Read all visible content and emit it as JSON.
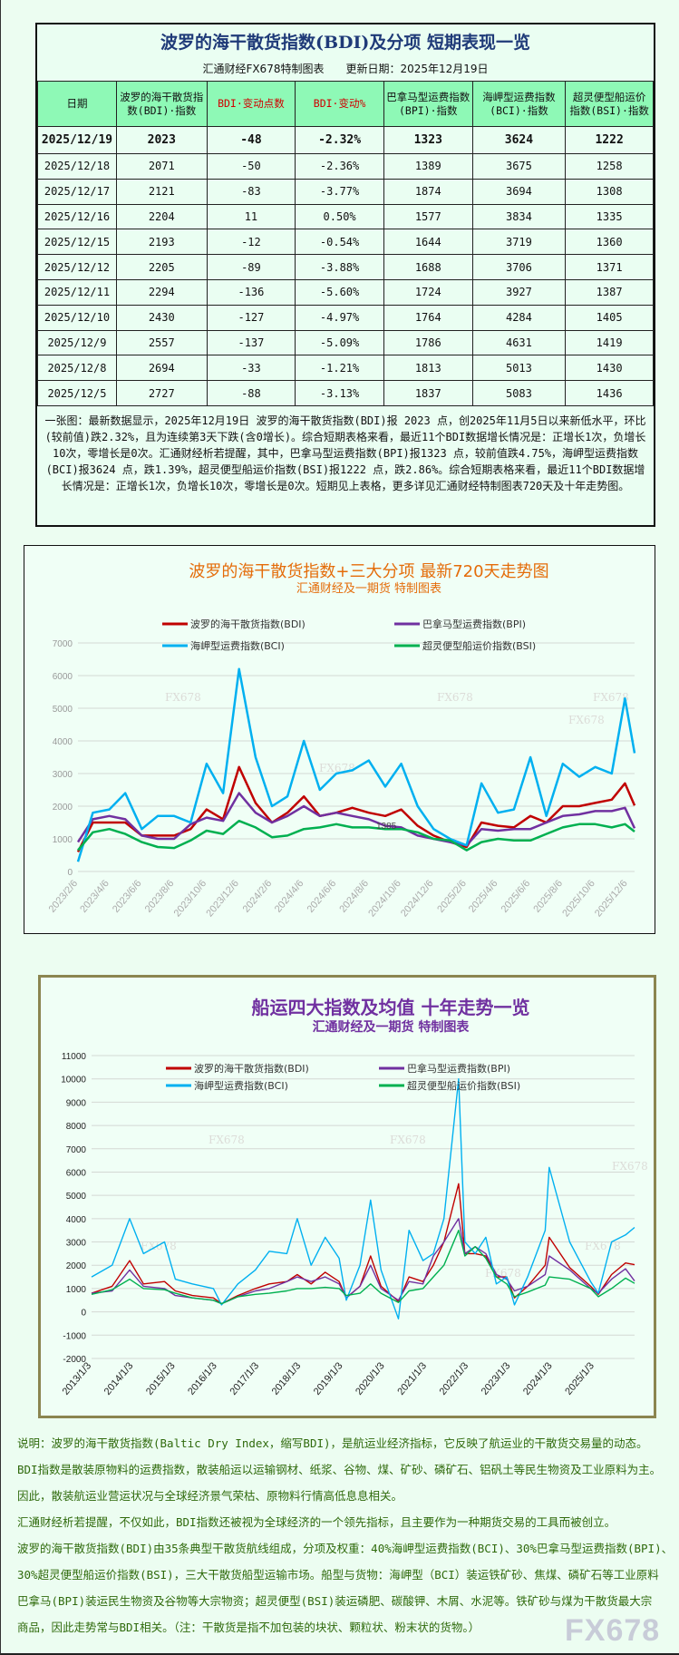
{
  "table_panel": {
    "title": "波罗的海干散货指数(BDI)及分项 短期表现一览",
    "source": "汇通财经FX678特制图表",
    "update_date": "更新日期：2025年12月19日",
    "headers": [
      "日期",
      "波罗的海干散货指数(BDI)·指数",
      "BDI·变动点数",
      "BDI·变动%",
      "巴拿马型运费指数(BPI)·指数",
      "海岬型运费指数(BCI)·指数",
      "超灵便型船运价指数(BSI)·指数"
    ],
    "rows": [
      [
        "2025/12/19",
        "2023",
        "-48",
        "-2.32%",
        "1323",
        "3624",
        "1222"
      ],
      [
        "2025/12/18",
        "2071",
        "-50",
        "-2.36%",
        "1389",
        "3675",
        "1258"
      ],
      [
        "2025/12/17",
        "2121",
        "-83",
        "-3.77%",
        "1874",
        "3694",
        "1308"
      ],
      [
        "2025/12/16",
        "2204",
        "11",
        "0.50%",
        "1577",
        "3834",
        "1335"
      ],
      [
        "2025/12/15",
        "2193",
        "-12",
        "-0.54%",
        "1644",
        "3719",
        "1360"
      ],
      [
        "2025/12/12",
        "2205",
        "-89",
        "-3.88%",
        "1688",
        "3706",
        "1371"
      ],
      [
        "2025/12/11",
        "2294",
        "-136",
        "-5.60%",
        "1724",
        "3927",
        "1387"
      ],
      [
        "2025/12/10",
        "2430",
        "-127",
        "-4.97%",
        "1764",
        "4284",
        "1405"
      ],
      [
        "2025/12/9",
        "2557",
        "-137",
        "-5.09%",
        "1786",
        "4631",
        "1419"
      ],
      [
        "2025/12/8",
        "2694",
        "-33",
        "-1.21%",
        "1813",
        "5013",
        "1430"
      ],
      [
        "2025/12/5",
        "2727",
        "-88",
        "-3.13%",
        "1837",
        "5083",
        "1436"
      ]
    ],
    "summary": "一张图：最新数据显示，2025年12月19日 波罗的海干散货指数(BDI)报 2023 点，创2025年11月5日以来新低水平，环比(较前值)跌2.32%，且为连续第3天下跌(含0增长)。综合短期表格来看，最近11个BDI数据增长情况是：正增长1次，负增长10次，零增长是0次。汇通财经析若提醒，其中，巴拿马型运费指数(BPI)报1323 点，较前值跌4.75%，海岬型运费指数(BCI)报3624 点，跌1.39%，超灵便型船运价指数(BSI)报1222 点，跌2.86%。综合短期表格来看，最近11个BDI数据增长情况是：正增长1次，负增长10次，零增长是0次。短期见上表格，更多详见汇通财经特制图表720天及十年走势图。"
  },
  "chart_data": [
    {
      "type": "line",
      "title": "波罗的海干散货指数+三大分项  最新720天走势图",
      "subtitle": "汇通财经及一期货  特制图表",
      "title_color": "#e46c0a",
      "ylim": [
        0,
        7000
      ],
      "yticks": [
        0,
        1000,
        2000,
        3000,
        4000,
        5000,
        6000,
        7000
      ],
      "xlim": [
        "2023-02-06",
        "2025-12-19"
      ],
      "x_ticks": [
        "2023/2/6",
        "2023/4/6",
        "2023/6/6",
        "2023/8/6",
        "2023/10/6",
        "2023/12/6",
        "2024/2/6",
        "2024/4/6",
        "2024/6/6",
        "2024/8/6",
        "2024/10/6",
        "2024/12/6",
        "2025/2/6",
        "2025/4/6",
        "2025/6/6",
        "2025/8/6",
        "2025/10/6",
        "2025/12/6"
      ],
      "grid": true,
      "legend_placement": "top",
      "watermark": "FX678",
      "annotation": "1385",
      "x": [
        "2023-02-06",
        "2023-03-06",
        "2023-04-06",
        "2023-05-06",
        "2023-06-06",
        "2023-07-06",
        "2023-08-06",
        "2023-09-06",
        "2023-10-06",
        "2023-11-06",
        "2023-12-06",
        "2024-01-06",
        "2024-02-06",
        "2024-03-06",
        "2024-04-06",
        "2024-05-06",
        "2024-06-06",
        "2024-07-06",
        "2024-08-06",
        "2024-09-06",
        "2024-10-06",
        "2024-11-06",
        "2024-12-06",
        "2025-01-06",
        "2025-02-06",
        "2025-03-06",
        "2025-04-06",
        "2025-05-06",
        "2025-06-06",
        "2025-07-06",
        "2025-08-06",
        "2025-09-06",
        "2025-10-06",
        "2025-11-06",
        "2025-12-01",
        "2025-12-19"
      ],
      "series": [
        {
          "name": "波罗的海干散货指数(BDI)",
          "color": "#c00000",
          "values": [
            600,
            1500,
            1500,
            1500,
            1100,
            1100,
            1100,
            1300,
            1900,
            1600,
            3200,
            2100,
            1500,
            1800,
            2300,
            1700,
            1800,
            1950,
            1800,
            1700,
            1900,
            1400,
            1100,
            900,
            750,
            1500,
            1400,
            1350,
            1700,
            1500,
            2000,
            2000,
            2100,
            2200,
            2700,
            2023
          ]
        },
        {
          "name": "巴拿马型运费指数(BPI)",
          "color": "#7030a0",
          "values": [
            900,
            1600,
            1700,
            1600,
            1100,
            1000,
            1000,
            1450,
            1650,
            1550,
            2400,
            1800,
            1500,
            1700,
            2000,
            1700,
            1800,
            1700,
            1600,
            1400,
            1350,
            1100,
            1000,
            900,
            800,
            1300,
            1250,
            1300,
            1300,
            1500,
            1700,
            1750,
            1850,
            1850,
            1950,
            1323
          ]
        },
        {
          "name": "海岬型运费指数(BCI)",
          "color": "#00b0f0",
          "values": [
            300,
            1800,
            1900,
            2400,
            1300,
            1700,
            1700,
            1500,
            3300,
            2400,
            6200,
            3500,
            2000,
            2300,
            4000,
            2500,
            3000,
            3100,
            3400,
            2600,
            3300,
            2000,
            1300,
            1000,
            800,
            2700,
            1800,
            1900,
            3500,
            1700,
            3300,
            2900,
            3200,
            3000,
            5300,
            3624
          ]
        },
        {
          "name": "超灵便型船运价指数(BSI)",
          "color": "#00b050",
          "values": [
            650,
            1200,
            1300,
            1150,
            900,
            750,
            720,
            950,
            1250,
            1150,
            1550,
            1350,
            1050,
            1100,
            1300,
            1350,
            1450,
            1350,
            1350,
            1300,
            1300,
            1200,
            1000,
            950,
            650,
            900,
            1000,
            950,
            950,
            1150,
            1350,
            1450,
            1450,
            1350,
            1450,
            1222
          ]
        }
      ]
    },
    {
      "type": "line",
      "title": "船运四大指数及均值 十年走势一览",
      "subtitle": "汇通财经及一期货 特制图表",
      "title_color": "#7030a0",
      "ylim": [
        -2000,
        11000
      ],
      "yticks": [
        -2000,
        -1000,
        0,
        1000,
        2000,
        3000,
        4000,
        5000,
        6000,
        7000,
        8000,
        9000,
        10000,
        11000
      ],
      "xlim": [
        "2013-01-03",
        "2025-12-19"
      ],
      "x_ticks": [
        "2013/1/3",
        "2014/1/3",
        "2015/1/3",
        "2016/1/3",
        "2017/1/3",
        "2018/1/3",
        "2019/1/3",
        "2020/1/3",
        "2021/1/3",
        "2022/1/3",
        "2023/1/3",
        "2024/1/3",
        "2025/1/3"
      ],
      "grid": true,
      "legend_placement": "top",
      "watermark": "FX678",
      "x": [
        "2013-01-03",
        "2013-07-01",
        "2013-12-01",
        "2014-04-01",
        "2014-10-01",
        "2015-01-03",
        "2015-06-01",
        "2015-12-01",
        "2016-02-10",
        "2016-07-01",
        "2016-12-01",
        "2017-04-01",
        "2017-09-01",
        "2017-12-01",
        "2018-04-01",
        "2018-08-01",
        "2018-12-01",
        "2019-02-01",
        "2019-06-01",
        "2019-09-01",
        "2019-12-01",
        "2020-05-01",
        "2020-08-01",
        "2020-12-01",
        "2021-03-01",
        "2021-06-01",
        "2021-10-07",
        "2021-12-01",
        "2022-03-01",
        "2022-06-01",
        "2022-09-01",
        "2022-12-01",
        "2023-02-06",
        "2023-06-01",
        "2023-11-01",
        "2023-12-06",
        "2024-06-01",
        "2024-12-01",
        "2025-02-06",
        "2025-06-01",
        "2025-10-01",
        "2025-12-19"
      ],
      "series": [
        {
          "name": "波罗的海干散货指数(BDI)",
          "color": "#c00000",
          "values": [
            800,
            1100,
            2200,
            1200,
            1300,
            900,
            700,
            600,
            350,
            700,
            1000,
            1200,
            1300,
            1600,
            1200,
            1700,
            1300,
            600,
            1100,
            2400,
            1100,
            450,
            1500,
            1300,
            2000,
            3000,
            5500,
            2500,
            2500,
            2400,
            1500,
            1500,
            600,
            1100,
            2000,
            3200,
            1900,
            1100,
            750,
            1600,
            2100,
            2023
          ]
        },
        {
          "name": "巴拿马型运费指数(BPI)",
          "color": "#7030a0",
          "values": [
            800,
            900,
            1800,
            1100,
            1000,
            700,
            600,
            500,
            350,
            650,
            900,
            1000,
            1300,
            1500,
            1300,
            1500,
            1200,
            600,
            1100,
            2000,
            1000,
            500,
            1300,
            1200,
            2400,
            3000,
            4000,
            2500,
            2800,
            2500,
            1600,
            1400,
            900,
            1100,
            1600,
            2400,
            1800,
            1000,
            800,
            1400,
            1850,
            1323
          ]
        },
        {
          "name": "海岬型运费指数(BCI)",
          "color": "#00b0f0",
          "values": [
            1500,
            2000,
            4000,
            2500,
            3000,
            1400,
            1200,
            1000,
            300,
            1200,
            1800,
            2600,
            2500,
            4000,
            2000,
            3200,
            2300,
            500,
            2000,
            4800,
            1800,
            -300,
            3500,
            2200,
            2500,
            4000,
            10000,
            3000,
            2500,
            3200,
            1200,
            1500,
            300,
            1500,
            3500,
            6200,
            3000,
            1300,
            800,
            3000,
            3300,
            3624
          ]
        },
        {
          "name": "超灵便型船运价指数(BSI)",
          "color": "#00b050",
          "values": [
            750,
            950,
            1400,
            1000,
            950,
            800,
            600,
            500,
            350,
            650,
            750,
            800,
            900,
            1000,
            1000,
            1050,
            1000,
            700,
            800,
            1200,
            800,
            400,
            900,
            1000,
            1500,
            2000,
            3500,
            2400,
            2800,
            2300,
            1500,
            1200,
            650,
            850,
            1150,
            1500,
            1400,
            1000,
            650,
            1000,
            1450,
            1222
          ]
        }
      ]
    }
  ],
  "notes": [
    "说明：波罗的海干散货指数(Baltic Dry Index，缩写BDI)，是航运业经济指标，它反映了航运业的干散货交易量的动态。",
    "BDI指数是散装原物料的运费指数，散装船运以运输钢材、纸浆、谷物、煤、矿砂、磷矿石、铝矾土等民生物资及工业原料为主。",
    "因此，散装航运业营运状况与全球经济景气荣枯、原物料行情高低息息相关。",
    "汇通财经析若提醒，不仅如此，BDI指数还被视为全球经济的一个领先指标，且主要作为一种期货交易的工具而被创立。",
    "波罗的海干散货指数(BDI)由35条典型干散货航线组成，分项及权重：40%海岬型运费指数(BCI)、30%巴拿马型运费指数(BPI)、",
    "30%超灵便型船运价指数(BSI)，三大干散货船型运输市场。船型与货物：海岬型（BCI）装运铁矿砂、焦煤、磷矿石等工业原料",
    "巴拿马(BPI)装运民生物资及谷物等大宗物资；超灵便型(BSI)装运磷肥、碳酸钾、木屑、水泥等。铁矿砂与煤为干散货最大宗",
    "商品，因此走势常与BDI相关。（注：干散货是指不加包装的块状、颗粒状、粉末状的货物。）"
  ],
  "watermark": "FX678"
}
